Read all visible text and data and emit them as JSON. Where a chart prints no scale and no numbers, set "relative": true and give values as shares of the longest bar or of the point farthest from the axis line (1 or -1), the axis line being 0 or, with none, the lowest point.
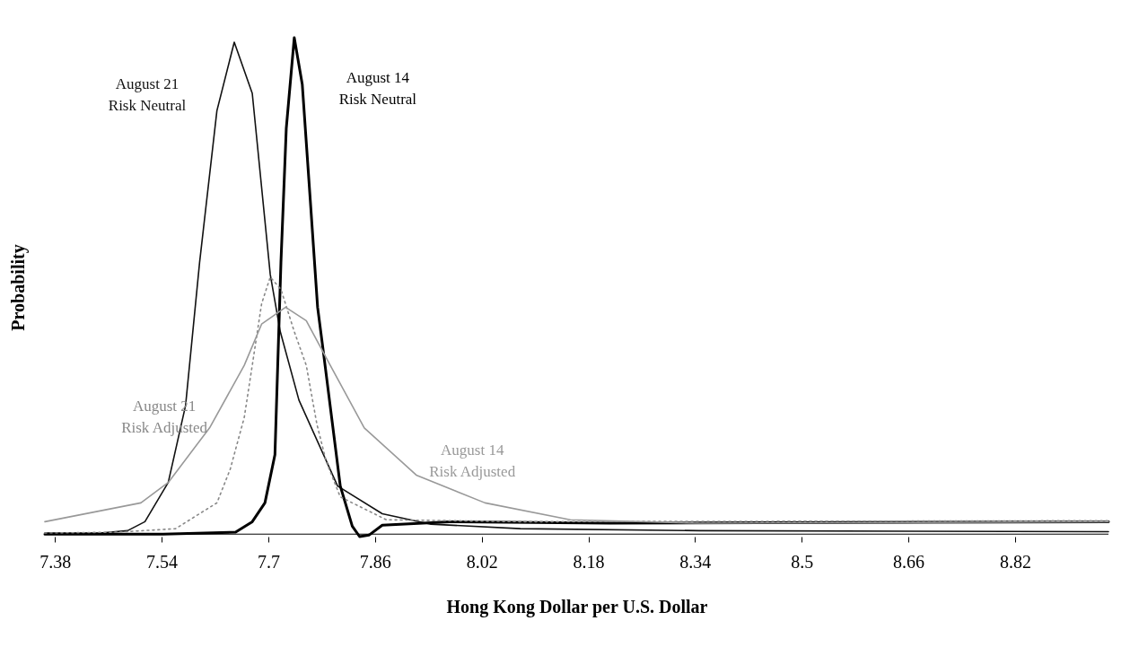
{
  "chart_data": {
    "type": "line",
    "relative": true,
    "xlabel": "Hong Kong Dollar per U.S. Dollar",
    "ylabel": "Probability",
    "xlim": [
      7.365,
      8.96
    ],
    "xticks": [
      7.38,
      7.54,
      7.7,
      7.86,
      8.02,
      8.18,
      8.34,
      8.5,
      8.66,
      8.82
    ],
    "grid": false,
    "marker": "none",
    "series": [
      {
        "name": "August 21 Risk Neutral",
        "color": "#111111",
        "line_style": "solid",
        "x": [
          7.365,
          7.448,
          7.489,
          7.515,
          7.55,
          7.576,
          7.597,
          7.623,
          7.649,
          7.676,
          7.703,
          7.718,
          7.746,
          7.804,
          7.871,
          7.944,
          8.078,
          8.346,
          8.96
        ],
        "values": [
          0.002,
          0.002,
          0.007,
          0.025,
          0.104,
          0.259,
          0.547,
          0.853,
          0.991,
          0.888,
          0.523,
          0.408,
          0.27,
          0.097,
          0.041,
          0.02,
          0.011,
          0.007,
          0.005
        ]
      },
      {
        "name": "August 14 Risk Neutral",
        "color": "#000000",
        "line_style": "solid",
        "x": [
          7.365,
          7.542,
          7.651,
          7.676,
          7.695,
          7.71,
          7.719,
          7.727,
          7.739,
          7.751,
          7.763,
          7.774,
          7.782,
          7.808,
          7.826,
          7.837,
          7.851,
          7.871,
          7.972,
          8.212,
          8.96
        ],
        "values": [
          0,
          0,
          0.004,
          0.025,
          0.063,
          0.16,
          0.547,
          0.817,
          1,
          0.906,
          0.673,
          0.457,
          0.374,
          0.097,
          0.016,
          -0.005,
          -0.002,
          0.018,
          0.025,
          0.022,
          0.025
        ]
      },
      {
        "name": "August 21 Risk Adjusted",
        "color": "#888888",
        "line_style": "dotted",
        "x": [
          7.365,
          7.475,
          7.561,
          7.623,
          7.643,
          7.664,
          7.676,
          7.69,
          7.703,
          7.719,
          7.739,
          7.757,
          7.773,
          7.787,
          7.808,
          7.877,
          8.078,
          8.96
        ],
        "values": [
          0.002,
          0.004,
          0.011,
          0.063,
          0.131,
          0.235,
          0.34,
          0.464,
          0.518,
          0.493,
          0.408,
          0.34,
          0.221,
          0.146,
          0.075,
          0.029,
          0.025,
          0.027
        ]
      },
      {
        "name": "August 14 Risk Adjusted",
        "color": "#999999",
        "line_style": "solid",
        "x": [
          7.365,
          7.509,
          7.55,
          7.612,
          7.664,
          7.69,
          7.726,
          7.757,
          7.793,
          7.844,
          7.922,
          8.025,
          8.153,
          8.346,
          8.96
        ],
        "values": [
          0.025,
          0.063,
          0.104,
          0.214,
          0.34,
          0.423,
          0.457,
          0.43,
          0.34,
          0.214,
          0.119,
          0.063,
          0.029,
          0.022,
          0.025
        ]
      }
    ]
  }
}
